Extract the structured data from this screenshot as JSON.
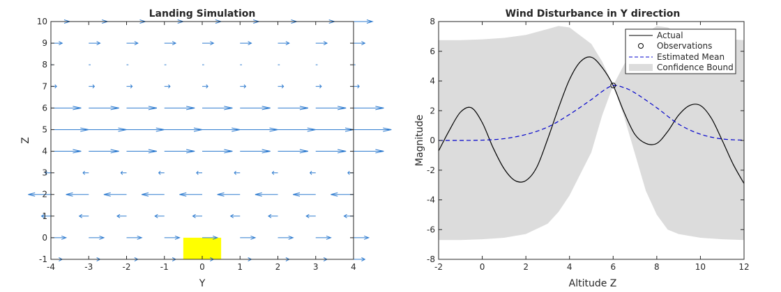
{
  "chart_data": [
    {
      "type": "quiver",
      "title": "Landing Simulation",
      "xlabel": "Y",
      "ylabel": "Z",
      "xlim": [
        -4,
        4
      ],
      "ylim": [
        -1,
        10
      ],
      "xticks": [
        -4,
        -3,
        -2,
        -1,
        0,
        1,
        2,
        3,
        4
      ],
      "yticks": [
        -1,
        0,
        1,
        2,
        3,
        4,
        5,
        6,
        7,
        8,
        9,
        10
      ],
      "grid_x": [
        -4,
        -3,
        -2,
        -1,
        0,
        1,
        2,
        3,
        4
      ],
      "rows": [
        {
          "z": -1,
          "u": 0.3
        },
        {
          "z": 0,
          "u": 0.4
        },
        {
          "z": 1,
          "u": -0.25
        },
        {
          "z": 2,
          "u": -0.6
        },
        {
          "z": 3,
          "u": -0.15
        },
        {
          "z": 4,
          "u": 0.8
        },
        {
          "z": 5,
          "u": 1.0
        },
        {
          "z": 6,
          "u": 0.8
        },
        {
          "z": 7,
          "u": 0.15
        },
        {
          "z": 8,
          "u": 0.05
        },
        {
          "z": 9,
          "u": 0.3
        },
        {
          "z": 10,
          "u": 0.5
        }
      ],
      "arrow_color": "#2e7bcf",
      "landing_pad": {
        "y_range": [
          -0.5,
          0.5
        ],
        "z_range": [
          -1,
          0
        ],
        "color": "#ffff00"
      },
      "grid": false
    },
    {
      "type": "line",
      "title": "Wind Disturbance in Y direction",
      "xlabel": "Altitude Z",
      "ylabel": "Magnitude",
      "xlim": [
        -2,
        12
      ],
      "ylim": [
        -8,
        8
      ],
      "xticks": [
        -2,
        0,
        2,
        4,
        6,
        8,
        10,
        12
      ],
      "yticks": [
        -8,
        -6,
        -4,
        -2,
        0,
        2,
        4,
        6,
        8
      ],
      "legend": {
        "position": "top-right",
        "entries": [
          "Actual",
          "Observations",
          "Estimated Mean",
          "Confidence Bound"
        ]
      },
      "series": [
        {
          "name": "Actual",
          "color": "#000000",
          "style": "solid",
          "x": [
            -2,
            -1.5,
            -1,
            -0.5,
            0,
            0.5,
            1,
            1.5,
            2,
            2.5,
            3,
            3.5,
            4,
            4.5,
            5,
            5.5,
            6,
            6.5,
            7,
            7.5,
            8,
            8.5,
            9,
            9.5,
            10,
            10.5,
            11,
            11.5,
            12
          ],
          "y": [
            -0.7,
            0.7,
            1.9,
            2.2,
            1.2,
            -0.5,
            -1.9,
            -2.7,
            -2.7,
            -1.8,
            0.1,
            2.2,
            4.1,
            5.3,
            5.6,
            4.9,
            3.7,
            1.9,
            0.4,
            -0.2,
            -0.2,
            0.6,
            1.7,
            2.35,
            2.35,
            1.5,
            0,
            -1.6,
            -2.9
          ]
        },
        {
          "name": "Estimated Mean",
          "color": "#0000cc",
          "style": "dashed",
          "x": [
            -2,
            -1,
            0,
            1,
            2,
            3,
            4,
            5,
            5.5,
            6,
            6.5,
            7,
            8,
            9,
            10,
            11,
            12
          ],
          "y": [
            0,
            0,
            0.02,
            0.12,
            0.4,
            0.9,
            1.75,
            2.75,
            3.3,
            3.7,
            3.55,
            3.2,
            2.2,
            1.1,
            0.42,
            0.1,
            0.02
          ]
        },
        {
          "name": "Observations",
          "marker": "circle",
          "x": [
            6
          ],
          "y": [
            3.7
          ]
        }
      ],
      "confidence_bound": {
        "name": "Confidence Bound",
        "color": "#dcdcdc",
        "x": [
          -2,
          -1,
          0,
          1,
          2,
          3,
          3.5,
          4,
          5,
          5.5,
          6,
          6.5,
          7,
          7.5,
          8,
          8.5,
          9,
          10,
          11,
          12
        ],
        "upper": [
          6.75,
          6.75,
          6.8,
          6.9,
          7.1,
          7.5,
          7.7,
          7.6,
          6.5,
          5.3,
          3.7,
          5.1,
          6.4,
          7.2,
          7.7,
          7.6,
          7.2,
          6.95,
          6.85,
          6.75
        ],
        "lower": [
          -6.7,
          -6.7,
          -6.65,
          -6.55,
          -6.3,
          -5.6,
          -4.8,
          -3.7,
          -0.8,
          1.7,
          3.7,
          1.6,
          -0.9,
          -3.4,
          -5.0,
          -6.0,
          -6.3,
          -6.55,
          -6.65,
          -6.7
        ]
      },
      "grid": false
    }
  ]
}
